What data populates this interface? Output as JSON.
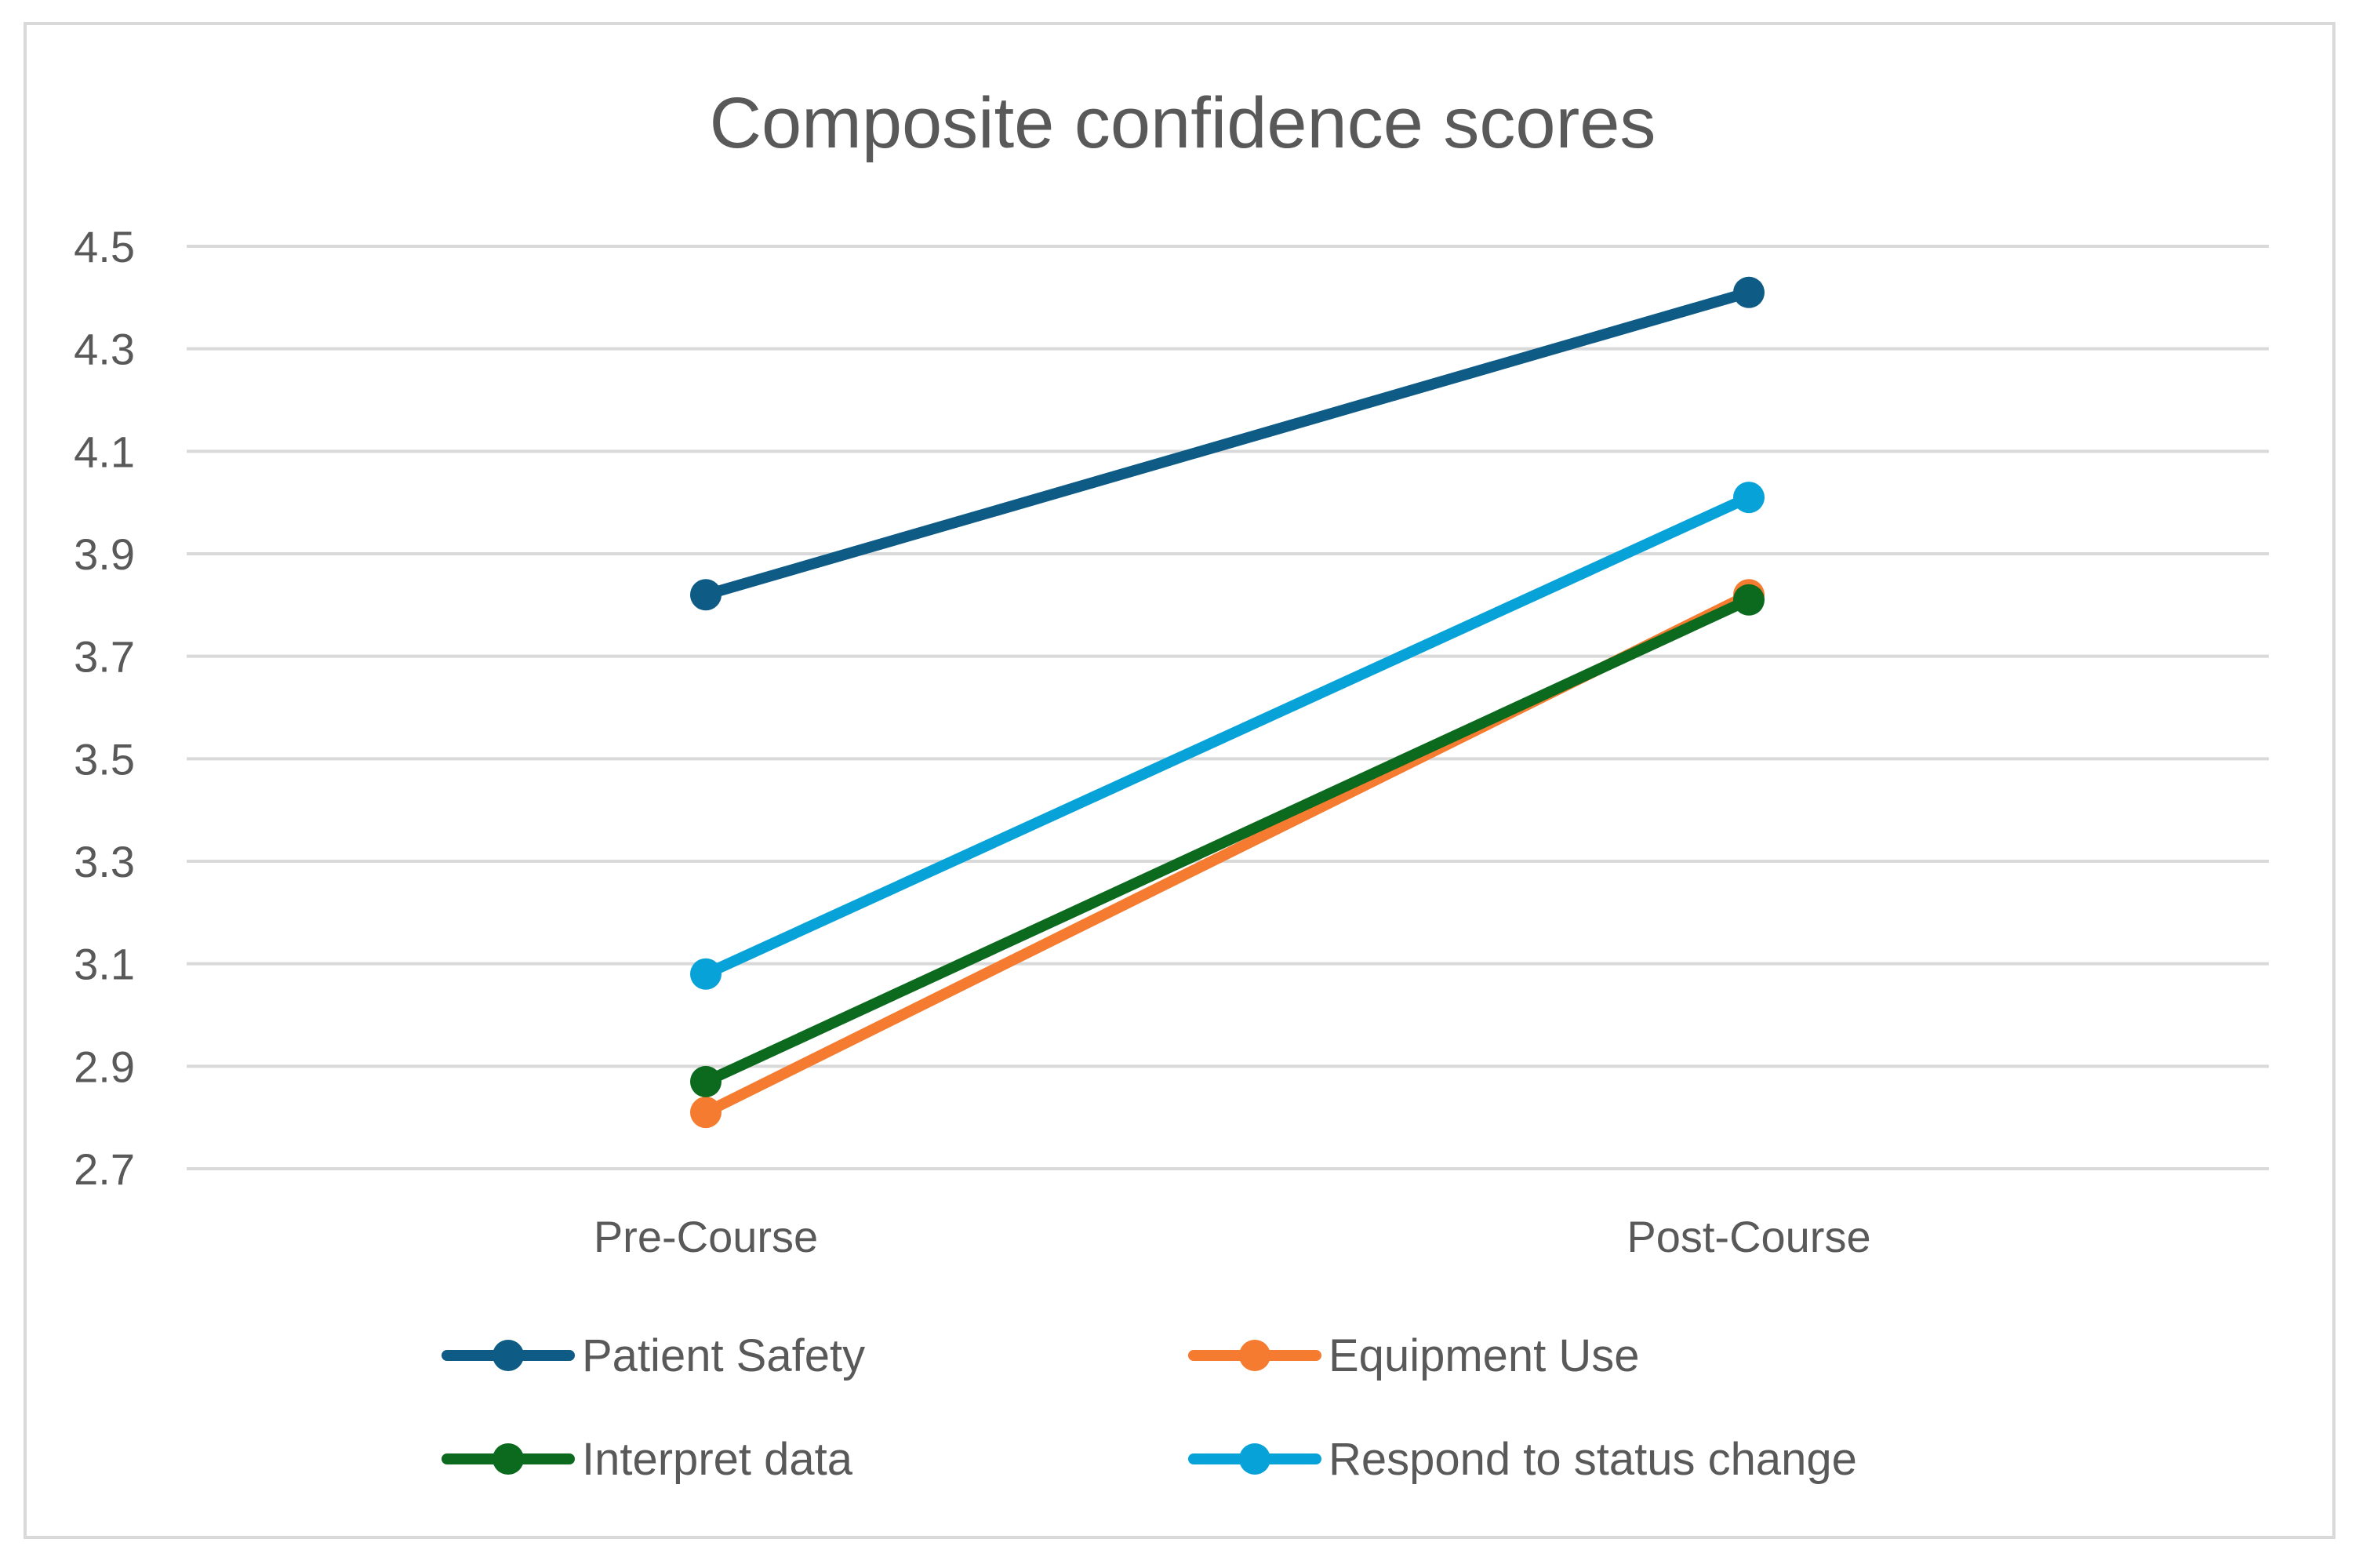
{
  "chart_data": {
    "type": "line",
    "title": "Composite confidence scores",
    "xlabel": "",
    "ylabel": "",
    "categories": [
      "Pre-Course",
      "Post-Course"
    ],
    "ylim": [
      2.7,
      4.5
    ],
    "yticks": [
      "4.5",
      "4.3",
      "4.1",
      "3.9",
      "3.7",
      "3.5",
      "3.3",
      "3.1",
      "2.9",
      "2.7"
    ],
    "grid": true,
    "legend_position": "bottom",
    "series": [
      {
        "name": "Patient Safety",
        "color": "#0e5b86",
        "values": [
          3.82,
          4.41
        ]
      },
      {
        "name": "Equipment Use",
        "color": "#f47b2f",
        "values": [
          2.81,
          3.82
        ]
      },
      {
        "name": "Interpret data",
        "color": "#0b6a1d",
        "values": [
          2.87,
          3.81
        ]
      },
      {
        "name": "Respond to status change",
        "color": "#07a3d8",
        "values": [
          3.08,
          4.01
        ]
      }
    ]
  }
}
